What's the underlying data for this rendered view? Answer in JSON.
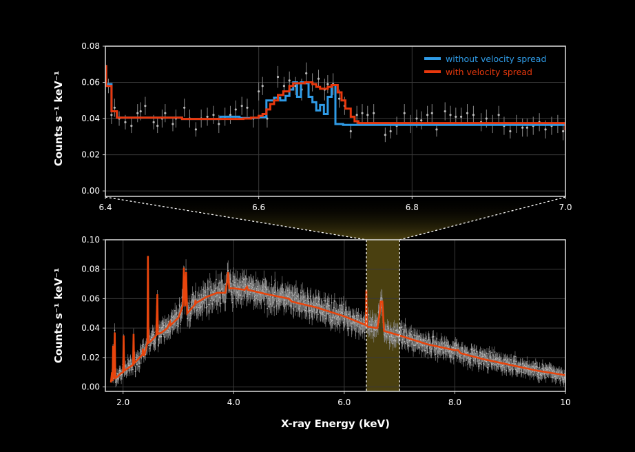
{
  "chart_data": [
    {
      "type": "line",
      "name": "zoom-panel",
      "ylabel": "Counts s⁻¹ keV⁻¹",
      "xlim": [
        6.4,
        7.0
      ],
      "ylim": [
        -0.003,
        0.08
      ],
      "xticks": [
        6.4,
        6.6,
        6.8,
        7.0
      ],
      "xtick_labels": [
        "6.4",
        "6.6",
        "6.8",
        "7.0"
      ],
      "yticks": [
        0.0,
        0.02,
        0.04,
        0.06,
        0.08
      ],
      "ytick_labels": [
        "0.00",
        "0.02",
        "0.04",
        "0.06",
        "0.08"
      ],
      "grid": true,
      "legend_position": "top-right",
      "series": [
        {
          "name": "without velocity spread",
          "color": "#2f9be6",
          "style": "step",
          "points": [
            [
              6.4,
              0.069
            ],
            [
              6.401,
              0.059
            ],
            [
              6.408,
              0.044
            ],
            [
              6.415,
              0.0405
            ],
            [
              6.5,
              0.0398
            ],
            [
              6.55,
              0.041
            ],
            [
              6.575,
              0.0403
            ],
            [
              6.6,
              0.0408
            ],
            [
              6.61,
              0.05
            ],
            [
              6.62,
              0.0515
            ],
            [
              6.628,
              0.05
            ],
            [
              6.635,
              0.0525
            ],
            [
              6.64,
              0.056
            ],
            [
              6.645,
              0.06
            ],
            [
              6.65,
              0.052
            ],
            [
              6.655,
              0.06
            ],
            [
              6.66,
              0.0595
            ],
            [
              6.665,
              0.052
            ],
            [
              6.67,
              0.049
            ],
            [
              6.675,
              0.0445
            ],
            [
              6.68,
              0.0475
            ],
            [
              6.685,
              0.0425
            ],
            [
              6.69,
              0.052
            ],
            [
              6.695,
              0.0585
            ],
            [
              6.7,
              0.037
            ],
            [
              6.71,
              0.0365
            ],
            [
              7.0,
              0.0335
            ]
          ]
        },
        {
          "name": "with velocity spread",
          "color": "#e8380d",
          "style": "step",
          "points": [
            [
              6.4,
              0.069
            ],
            [
              6.401,
              0.058
            ],
            [
              6.408,
              0.044
            ],
            [
              6.415,
              0.0405
            ],
            [
              6.5,
              0.0398
            ],
            [
              6.58,
              0.04
            ],
            [
              6.59,
              0.0405
            ],
            [
              6.6,
              0.0415
            ],
            [
              6.605,
              0.0425
            ],
            [
              6.61,
              0.045
            ],
            [
              6.615,
              0.048
            ],
            [
              6.62,
              0.05
            ],
            [
              6.625,
              0.053
            ],
            [
              6.632,
              0.055
            ],
            [
              6.64,
              0.058
            ],
            [
              6.645,
              0.0595
            ],
            [
              6.66,
              0.06
            ],
            [
              6.67,
              0.059
            ],
            [
              6.675,
              0.0575
            ],
            [
              6.68,
              0.0565
            ],
            [
              6.69,
              0.0575
            ],
            [
              6.695,
              0.0585
            ],
            [
              6.7,
              0.0585
            ],
            [
              6.703,
              0.0545
            ],
            [
              6.708,
              0.05
            ],
            [
              6.713,
              0.0455
            ],
            [
              6.72,
              0.041
            ],
            [
              6.725,
              0.0385
            ],
            [
              6.73,
              0.0375
            ],
            [
              7.0,
              0.0335
            ]
          ]
        }
      ],
      "data_points": [
        [
          6.404,
          0.058,
          0.004
        ],
        [
          6.408,
          0.042,
          0.005
        ],
        [
          6.412,
          0.046,
          0.005
        ],
        [
          6.418,
          0.04,
          0.004
        ],
        [
          6.426,
          0.038,
          0.004
        ],
        [
          6.434,
          0.036,
          0.004
        ],
        [
          6.442,
          0.043,
          0.005
        ],
        [
          6.446,
          0.044,
          0.005
        ],
        [
          6.452,
          0.047,
          0.005
        ],
        [
          6.463,
          0.038,
          0.004
        ],
        [
          6.468,
          0.036,
          0.004
        ],
        [
          6.474,
          0.04,
          0.005
        ],
        [
          6.478,
          0.043,
          0.005
        ],
        [
          6.488,
          0.037,
          0.004
        ],
        [
          6.492,
          0.04,
          0.005
        ],
        [
          6.503,
          0.046,
          0.005
        ],
        [
          6.51,
          0.04,
          0.005
        ],
        [
          6.518,
          0.034,
          0.004
        ],
        [
          6.525,
          0.04,
          0.005
        ],
        [
          6.533,
          0.041,
          0.005
        ],
        [
          6.541,
          0.042,
          0.005
        ],
        [
          6.548,
          0.037,
          0.005
        ],
        [
          6.556,
          0.041,
          0.005
        ],
        [
          6.563,
          0.042,
          0.005
        ],
        [
          6.57,
          0.045,
          0.005
        ],
        [
          6.578,
          0.047,
          0.005
        ],
        [
          6.585,
          0.046,
          0.005
        ],
        [
          6.593,
          0.04,
          0.005
        ],
        [
          6.6,
          0.055,
          0.005
        ],
        [
          6.605,
          0.058,
          0.005
        ],
        [
          6.611,
          0.04,
          0.005
        ],
        [
          6.625,
          0.063,
          0.006
        ],
        [
          6.633,
          0.058,
          0.005
        ],
        [
          6.64,
          0.061,
          0.005
        ],
        [
          6.648,
          0.058,
          0.005
        ],
        [
          6.656,
          0.056,
          0.006
        ],
        [
          6.662,
          0.065,
          0.006
        ],
        [
          6.67,
          0.06,
          0.005
        ],
        [
          6.678,
          0.062,
          0.005
        ],
        [
          6.686,
          0.056,
          0.006
        ],
        [
          6.69,
          0.059,
          0.005
        ],
        [
          6.697,
          0.059,
          0.006
        ],
        [
          6.705,
          0.051,
          0.005
        ],
        [
          6.712,
          0.047,
          0.005
        ],
        [
          6.72,
          0.033,
          0.004
        ],
        [
          6.728,
          0.042,
          0.005
        ],
        [
          6.735,
          0.043,
          0.005
        ],
        [
          6.742,
          0.042,
          0.005
        ],
        [
          6.75,
          0.043,
          0.005
        ],
        [
          6.765,
          0.031,
          0.004
        ],
        [
          6.772,
          0.033,
          0.004
        ],
        [
          6.78,
          0.036,
          0.005
        ],
        [
          6.79,
          0.043,
          0.005
        ],
        [
          6.798,
          0.037,
          0.005
        ],
        [
          6.806,
          0.04,
          0.005
        ],
        [
          6.812,
          0.039,
          0.005
        ],
        [
          6.82,
          0.042,
          0.005
        ],
        [
          6.826,
          0.043,
          0.005
        ],
        [
          6.832,
          0.034,
          0.004
        ],
        [
          6.843,
          0.044,
          0.005
        ],
        [
          6.85,
          0.042,
          0.005
        ],
        [
          6.857,
          0.041,
          0.005
        ],
        [
          6.864,
          0.041,
          0.005
        ],
        [
          6.872,
          0.043,
          0.005
        ],
        [
          6.88,
          0.042,
          0.005
        ],
        [
          6.89,
          0.038,
          0.005
        ],
        [
          6.897,
          0.04,
          0.005
        ],
        [
          6.905,
          0.037,
          0.005
        ],
        [
          6.913,
          0.042,
          0.005
        ],
        [
          6.92,
          0.036,
          0.005
        ],
        [
          6.928,
          0.033,
          0.004
        ],
        [
          6.936,
          0.037,
          0.005
        ],
        [
          6.944,
          0.035,
          0.005
        ],
        [
          6.95,
          0.035,
          0.005
        ],
        [
          6.958,
          0.036,
          0.005
        ],
        [
          6.966,
          0.038,
          0.005
        ],
        [
          6.974,
          0.034,
          0.005
        ],
        [
          6.982,
          0.036,
          0.005
        ],
        [
          6.99,
          0.037,
          0.005
        ],
        [
          6.997,
          0.033,
          0.005
        ]
      ]
    },
    {
      "type": "line",
      "name": "full-spectrum",
      "xlabel": "X-ray Energy (keV)",
      "ylabel": "Counts s⁻¹ keV⁻¹",
      "xlim": [
        1.68,
        10.0
      ],
      "ylim": [
        -0.003,
        0.1
      ],
      "xticks": [
        2.0,
        4.0,
        6.0,
        8.0,
        10.0
      ],
      "xtick_labels": [
        "2.0",
        "4.0",
        "6.0",
        "8.0",
        "10"
      ],
      "yticks": [
        0.0,
        0.02,
        0.04,
        0.06,
        0.08,
        0.1
      ],
      "ytick_labels": [
        "0.00",
        "0.02",
        "0.04",
        "0.06",
        "0.08",
        "0.10"
      ],
      "grid": true,
      "highlight_range": [
        6.4,
        7.0
      ],
      "highlight_color": "#4a4010",
      "series": [
        {
          "name": "with velocity spread",
          "color": "#e8450d",
          "points": [
            [
              1.78,
              0.003
            ],
            [
              1.8,
              0.01
            ],
            [
              1.81,
              0.004
            ],
            [
              1.82,
              0.028
            ],
            [
              1.83,
              0.006
            ],
            [
              1.85,
              0.037
            ],
            [
              1.86,
              0.006
            ],
            [
              1.9,
              0.007
            ],
            [
              1.95,
              0.009
            ],
            [
              2.0,
              0.01
            ],
            [
              2.01,
              0.035
            ],
            [
              2.02,
              0.011
            ],
            [
              2.1,
              0.013
            ],
            [
              2.18,
              0.015
            ],
            [
              2.19,
              0.036
            ],
            [
              2.2,
              0.016
            ],
            [
              2.3,
              0.02
            ],
            [
              2.35,
              0.022
            ],
            [
              2.36,
              0.026
            ],
            [
              2.38,
              0.021
            ],
            [
              2.44,
              0.03
            ],
            [
              2.45,
              0.089
            ],
            [
              2.46,
              0.03
            ],
            [
              2.5,
              0.031
            ],
            [
              2.6,
              0.035
            ],
            [
              2.62,
              0.063
            ],
            [
              2.63,
              0.036
            ],
            [
              2.7,
              0.037
            ],
            [
              2.8,
              0.04
            ],
            [
              2.85,
              0.044
            ],
            [
              2.86,
              0.042
            ],
            [
              3.0,
              0.047
            ],
            [
              3.08,
              0.055
            ],
            [
              3.1,
              0.081
            ],
            [
              3.12,
              0.055
            ],
            [
              3.14,
              0.078
            ],
            [
              3.16,
              0.05
            ],
            [
              3.3,
              0.056
            ],
            [
              3.31,
              0.059
            ],
            [
              3.32,
              0.057
            ],
            [
              3.5,
              0.061
            ],
            [
              3.7,
              0.064
            ],
            [
              3.85,
              0.064
            ],
            [
              3.88,
              0.071
            ],
            [
              3.9,
              0.078
            ],
            [
              3.92,
              0.067
            ],
            [
              4.0,
              0.067
            ],
            [
              4.2,
              0.066
            ],
            [
              4.24,
              0.068
            ],
            [
              4.26,
              0.066
            ],
            [
              4.6,
              0.063
            ],
            [
              5.0,
              0.06
            ],
            [
              5.05,
              0.058
            ],
            [
              5.5,
              0.054
            ],
            [
              6.0,
              0.048
            ],
            [
              6.39,
              0.042
            ],
            [
              6.4,
              0.066
            ],
            [
              6.41,
              0.041
            ],
            [
              6.6,
              0.04
            ],
            [
              6.64,
              0.05
            ],
            [
              6.66,
              0.058
            ],
            [
              6.69,
              0.058
            ],
            [
              6.72,
              0.038
            ],
            [
              7.0,
              0.035
            ],
            [
              7.5,
              0.029
            ],
            [
              8.0,
              0.025
            ],
            [
              8.06,
              0.025
            ],
            [
              8.1,
              0.023
            ],
            [
              8.5,
              0.019
            ],
            [
              9.0,
              0.015
            ],
            [
              9.5,
              0.011
            ],
            [
              10.0,
              0.008
            ]
          ]
        }
      ],
      "data_scatter": "gray points with error bars around model"
    }
  ]
}
